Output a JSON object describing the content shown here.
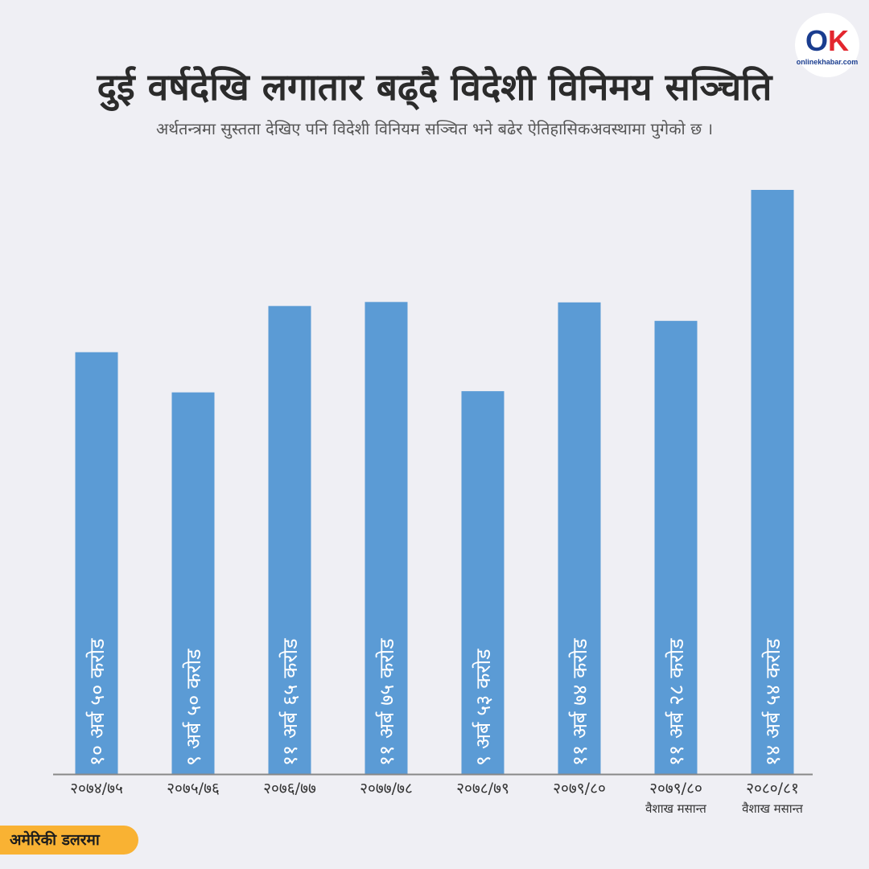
{
  "header": {
    "title": "दुई वर्षदेखि लगातार बढ्दै विदेशी विनिमय सञ्चिति",
    "subtitle": "अर्थतन्त्रमा सुस्तता देखिए पनि विदेशी विनियम सञ्चित भने बढेर ऐतिहासिकअवस्थामा पुगेको छ ।"
  },
  "logo": {
    "mark_o": "O",
    "mark_k": "K",
    "text": "onlinekhabar.com"
  },
  "unit_badge": "अमेरिकी डलरमा",
  "colors": {
    "bar": "#5b9bd5",
    "background": "#efeff4",
    "badge": "#f9b233",
    "axis": "#888888"
  },
  "chart_data": {
    "type": "bar",
    "title": "दुई वर्षदेखि लगातार बढ्दै विदेशी विनिमय सञ्चिति",
    "categories": [
      [
        "२०७४/७५"
      ],
      [
        "२०७५/७६"
      ],
      [
        "२०७६/७७"
      ],
      [
        "२०७७/७८"
      ],
      [
        "२०७८/७९"
      ],
      [
        "२०७९/८०"
      ],
      [
        "२०७९/८०",
        "वैशाख मसान्त"
      ],
      [
        "२०८०/८१",
        "वैशाख मसान्त"
      ]
    ],
    "values": [
      10.5,
      9.5,
      11.65,
      11.75,
      9.53,
      11.74,
      11.28,
      14.54
    ],
    "value_labels": [
      "१० अर्ब ५० करोड",
      "९ अर्ब ५० करोड",
      "११ अर्ब ६५ करोड",
      "११ अर्ब ७५ करोड",
      "९ अर्ब ५३ करोड",
      "११ अर्ब ७४ करोड",
      "११ अर्ब २८ करोड",
      "१४ अर्ब ५४ करोड"
    ],
    "unit": "अमेरिकी डलरमा",
    "ylim": [
      0,
      14.54
    ],
    "grid": false,
    "legend": "none"
  }
}
